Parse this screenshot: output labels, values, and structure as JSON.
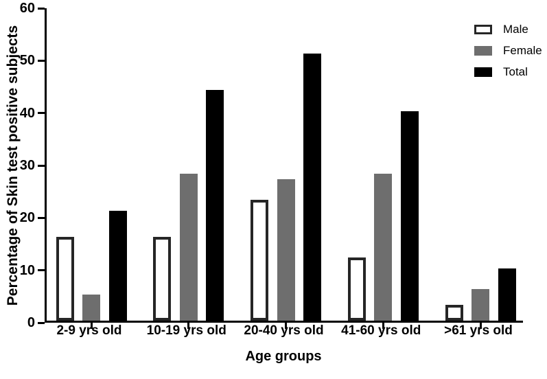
{
  "figure": {
    "background": "#ffffff",
    "axis_color": "#000000"
  },
  "chart_data": {
    "type": "bar",
    "title": "",
    "xlabel": "Age groups",
    "ylabel": "Percentage of Skin test positive subjects",
    "categories": [
      "2-9 yrs old",
      "10-19 yrs old",
      "20-40 yrs old",
      "41-60 yrs old",
      ">61 yrs old"
    ],
    "series": [
      {
        "name": "Male",
        "values": [
          16,
          16,
          23,
          12,
          3
        ],
        "fill": "#ffffff",
        "border": "#262626"
      },
      {
        "name": "Female",
        "values": [
          5,
          28,
          27,
          28,
          6
        ],
        "fill": "#6e6e6e",
        "border": "#6e6e6e"
      },
      {
        "name": "Total",
        "values": [
          21,
          44,
          51,
          40,
          10
        ],
        "fill": "#000000",
        "border": "#000000"
      }
    ],
    "ylim": [
      0,
      60
    ],
    "yticks": [
      0,
      10,
      20,
      30,
      40,
      50,
      60
    ],
    "grid": false,
    "legend_position": "top-right"
  }
}
